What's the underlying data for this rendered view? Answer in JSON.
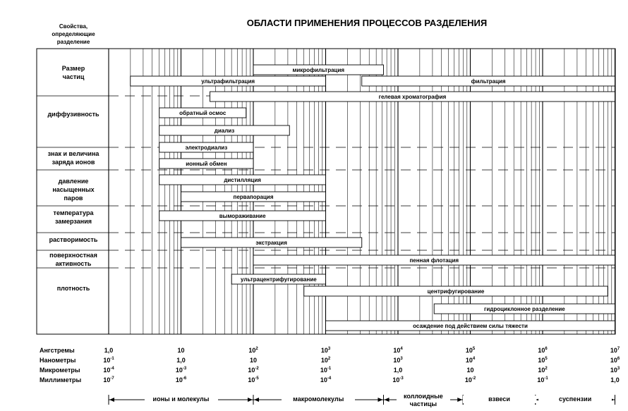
{
  "corner_header": {
    "line1": "Свойства,",
    "line2": "определяющие",
    "line3": "разделение"
  },
  "title": "ОБЛАСТИ ПРИМЕНЕНИЯ ПРОЦЕССОВ РАЗДЕЛЕНИЯ",
  "properties": [
    {
      "line1": "Размер",
      "line2": "частиц"
    },
    {
      "line1": "диффузивность"
    },
    {
      "line1": "знак и величина",
      "line2": "заряда ионов"
    },
    {
      "line1": "давление",
      "line2": "насыщенных",
      "line3": "паров"
    },
    {
      "line1": "температура",
      "line2": "замерзания"
    },
    {
      "line1": "растворимость"
    },
    {
      "line1": "поверхностная",
      "line2": "активность"
    },
    {
      "line1": "плотность"
    }
  ],
  "processes": [
    {
      "label": "микрофильтрация",
      "from": 2,
      "to": 3.8
    },
    {
      "label": "ультрафильтрация",
      "from": 0.3,
      "to": 3
    },
    {
      "label": "фильтрация",
      "from": 3.5,
      "to": 7
    },
    {
      "label": "гелевая хроматография",
      "from": 1.4,
      "to": 7
    },
    {
      "label": "обратный осмос",
      "from": 0.7,
      "to": 1.9
    },
    {
      "label": "диализ",
      "from": 0.7,
      "to": 2.5
    },
    {
      "label": "электродиализ",
      "from": 0.7,
      "to": 2
    },
    {
      "label": "ионный обмен",
      "from": 0.7,
      "to": 2
    },
    {
      "label": "дистилляция",
      "from": 0.7,
      "to": 3
    },
    {
      "label": "первапорация",
      "from": 1,
      "to": 3
    },
    {
      "label": "вымораживание",
      "from": 0.7,
      "to": 3
    },
    {
      "label": "экстракция",
      "from": 1,
      "to": 3.5
    },
    {
      "label": "пенная флотация",
      "from": 2,
      "to": 7
    },
    {
      "label": "ультрацентрифугирование",
      "from": 1.7,
      "to": 3
    },
    {
      "label": "центрифугирование",
      "from": 2.7,
      "to": 6.9
    },
    {
      "label": "гидроциклонное разделение",
      "from": 4.5,
      "to": 7
    },
    {
      "label": "осаждение под действием силы тяжести",
      "from": 3,
      "to": 7
    }
  ],
  "scales": {
    "angstrom_label": "Ангстремы",
    "nanometer_label": "Нанометры",
    "micrometer_label": "Микрометры",
    "millimeter_label": "Миллиметры",
    "columns": [
      {
        "a_base": "1,0",
        "a_exp": "",
        "nm_base": "10",
        "nm_exp": "-1",
        "um_base": "10",
        "um_exp": "-4",
        "mm_base": "10",
        "mm_exp": "-7"
      },
      {
        "a_base": "10",
        "a_exp": "",
        "nm_base": "1,0",
        "nm_exp": "",
        "um_base": "10",
        "um_exp": "-3",
        "mm_base": "10",
        "mm_exp": "-6"
      },
      {
        "a_base": "10",
        "a_exp": "2",
        "nm_base": "10",
        "nm_exp": "",
        "um_base": "10",
        "um_exp": "-2",
        "mm_base": "10",
        "mm_exp": "-5"
      },
      {
        "a_base": "10",
        "a_exp": "3",
        "nm_base": "10",
        "nm_exp": "2",
        "um_base": "10",
        "um_exp": "-1",
        "mm_base": "10",
        "mm_exp": "-4"
      },
      {
        "a_base": "10",
        "a_exp": "4",
        "nm_base": "10",
        "nm_exp": "3",
        "um_base": "1,0",
        "um_exp": "",
        "mm_base": "10",
        "mm_exp": "-3"
      },
      {
        "a_base": "10",
        "a_exp": "5",
        "nm_base": "10",
        "nm_exp": "4",
        "um_base": "10",
        "um_exp": "",
        "mm_base": "10",
        "mm_exp": "-2"
      },
      {
        "a_base": "10",
        "a_exp": "6",
        "nm_base": "10",
        "nm_exp": "5",
        "um_base": "10",
        "um_exp": "2",
        "mm_base": "10",
        "mm_exp": "-1"
      },
      {
        "a_base": "10",
        "a_exp": "7",
        "nm_base": "10",
        "nm_exp": "6",
        "um_base": "10",
        "um_exp": "3",
        "mm_base": "1,0",
        "mm_exp": ""
      }
    ]
  },
  "ranges": [
    {
      "label": "ионы и молекулы",
      "from": 0,
      "to": 2
    },
    {
      "label": "макромолекулы",
      "from": 2,
      "to": 3.8
    },
    {
      "label_line1": "коллоидные",
      "label_line2": "частицы",
      "from": 3.8,
      "to": 4.9
    },
    {
      "label": "взвеси",
      "from": 4.9,
      "to": 5.9
    },
    {
      "label": "суспензии",
      "from": 5.9,
      "to": 7
    }
  ]
}
